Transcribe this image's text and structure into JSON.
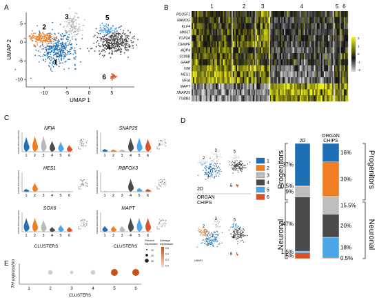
{
  "panels": {
    "A": {
      "letter": "A",
      "x_axis_label": "UMAP 1",
      "y_axis_label": "UMAP 2",
      "x_ticks": [
        "-10",
        "-5",
        "0",
        "5"
      ],
      "y_ticks": [
        "5",
        "0",
        "-5",
        "-10"
      ],
      "cluster_labels": [
        "1",
        "2",
        "3",
        "4",
        "5",
        "6"
      ],
      "colors": {
        "c1": "#1f6fb4",
        "c2": "#ef7d22",
        "c3": "#b9b9b9",
        "c4": "#4a4a4a",
        "c5": "#4aa6e6",
        "c6": "#d9532a"
      }
    },
    "B": {
      "letter": "B",
      "genes": [
        "POU5F1",
        "NANOG",
        "KLF4",
        "MKI67",
        "TOP2A",
        "CENPF",
        "AQP4",
        "S100B",
        "GFAP",
        "VIM",
        "HES1",
        "NFIA",
        "MAPT",
        "SNAP25",
        "TUBB3"
      ],
      "cluster_labels": [
        "1",
        "2",
        "3",
        "4",
        "5",
        "6"
      ],
      "colorbar_ticks": [
        "2",
        "1",
        "0",
        "-1",
        "-2"
      ]
    },
    "C": {
      "letter": "C",
      "genes": [
        "NFIA",
        "SNAP25",
        "HES1",
        "RBFOX3",
        "SOX6",
        "MAPT"
      ],
      "y_axis_label": "NORMALIZED EXPRESSION",
      "x_axis_label": "CLUSTERS",
      "cluster_ticks": [
        "1",
        "2",
        "3",
        "4",
        "5",
        "6"
      ]
    },
    "D": {
      "letter": "D",
      "label_2d": "2D",
      "label_organ": "ORGAN CHIPS",
      "umap_axis_x": "UMAP1",
      "umap_axis_y": "UMAP2",
      "legend": [
        "1",
        "2",
        "3",
        "4",
        "5",
        "6"
      ],
      "stack_header_2d": "2D",
      "stack_header_organ": "ORGAN CHIPS",
      "side_label_progenitors": "Progenitors",
      "side_label_neuronal": "Neuronal",
      "stack_2d": {
        "segments": [
          {
            "cluster": "1",
            "pct": 37,
            "label": "37%"
          },
          {
            "cluster": "2",
            "pct": 0.5,
            "label": "0.5%"
          },
          {
            "cluster": "3",
            "pct": 9,
            "label": "9%"
          },
          {
            "cluster": "4",
            "pct": 47,
            "label": "47%"
          },
          {
            "cluster": "5",
            "pct": 1.5,
            "label": "1.5%"
          },
          {
            "cluster": "6",
            "pct": 5,
            "label": "5%"
          }
        ]
      },
      "stack_organ": {
        "segments": [
          {
            "cluster": "1",
            "pct": 16,
            "label": "16%"
          },
          {
            "cluster": "2",
            "pct": 30,
            "label": "30%"
          },
          {
            "cluster": "3",
            "pct": 15.5,
            "label": "15.5%"
          },
          {
            "cluster": "4",
            "pct": 20,
            "label": "20%"
          },
          {
            "cluster": "5",
            "pct": 18,
            "label": "18%"
          },
          {
            "cluster": "6",
            "pct": 0.5,
            "label": "0.5%"
          }
        ]
      }
    },
    "E": {
      "letter": "E",
      "y_axis_label": "TH expression",
      "x_axis_label": "CLUSTERS",
      "cluster_ticks": [
        "1",
        "2",
        "3",
        "4",
        "5",
        "6"
      ],
      "legend_percent_title": "Percent expressed",
      "legend_average_title": "Average expression",
      "legend_percent_values": [
        "10",
        "20",
        "30"
      ],
      "legend_average_values": [
        "0.6",
        "0.4",
        "0.2",
        "0.0"
      ],
      "dots": [
        {
          "cluster": "1",
          "percent": 0,
          "avg": 0
        },
        {
          "cluster": "2",
          "percent": 8,
          "avg": 0.02
        },
        {
          "cluster": "3",
          "percent": 2,
          "avg": 0.01
        },
        {
          "cluster": "4",
          "percent": 8,
          "avg": 0.02
        },
        {
          "cluster": "5",
          "percent": 30,
          "avg": 0.6
        },
        {
          "cluster": "6",
          "percent": 30,
          "avg": 0.6
        }
      ]
    }
  }
}
